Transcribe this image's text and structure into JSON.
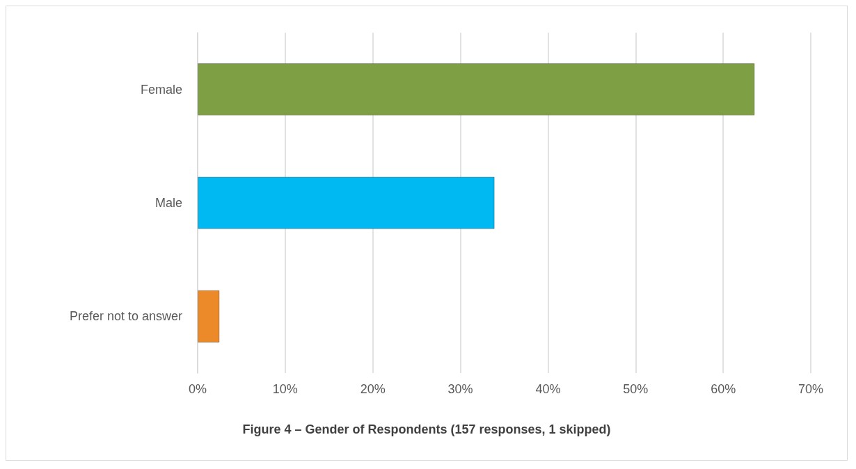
{
  "chart_data": {
    "type": "bar",
    "orientation": "horizontal",
    "title": "Figure 4 – Gender of Respondents (157 responses, 1 skipped)",
    "categories": [
      "Female",
      "Male",
      "Prefer not to answer"
    ],
    "values": [
      63.6,
      33.9,
      2.5
    ],
    "colors": [
      "#7f9f45",
      "#00b8f2",
      "#ec8a2a"
    ],
    "xlim": [
      0,
      70
    ],
    "xticks": [
      {
        "value": 0,
        "label": "0%"
      },
      {
        "value": 10,
        "label": "10%"
      },
      {
        "value": 20,
        "label": "20%"
      },
      {
        "value": 30,
        "label": "30%"
      },
      {
        "value": 40,
        "label": "40%"
      },
      {
        "value": 50,
        "label": "50%"
      },
      {
        "value": 60,
        "label": "60%"
      },
      {
        "value": 70,
        "label": "70%"
      }
    ],
    "grid": "x"
  }
}
